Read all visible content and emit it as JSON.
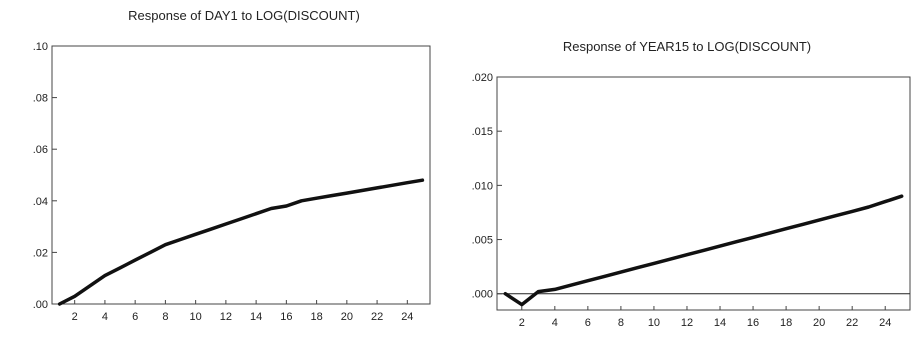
{
  "chart_data": [
    {
      "type": "line",
      "title": "Response of DAY1 to LOG(DISCOUNT)",
      "xlabel": "",
      "ylabel": "",
      "xlim": [
        0.5,
        25.5
      ],
      "ylim": [
        0.0,
        0.1
      ],
      "x_ticks": [
        2,
        4,
        6,
        8,
        10,
        12,
        14,
        16,
        18,
        20,
        22,
        24
      ],
      "x_tick_labels": [
        "2",
        "4",
        "6",
        "8",
        "10",
        "12",
        "14",
        "16",
        "18",
        "20",
        "22",
        "24"
      ],
      "y_ticks": [
        0.0,
        0.02,
        0.04,
        0.06,
        0.08,
        0.1
      ],
      "y_tick_labels": [
        ".00",
        ".02",
        ".04",
        ".06",
        ".08",
        ".10"
      ],
      "grid": false,
      "zero_line": false,
      "series": [
        {
          "x": [
            1,
            2,
            3,
            4,
            5,
            6,
            7,
            8,
            9,
            10,
            11,
            12,
            13,
            14,
            15,
            16,
            17,
            18,
            19,
            20,
            21,
            22,
            23,
            24,
            25
          ],
          "values": [
            0.0,
            0.003,
            0.007,
            0.011,
            0.014,
            0.017,
            0.02,
            0.023,
            0.025,
            0.027,
            0.029,
            0.031,
            0.033,
            0.035,
            0.037,
            0.038,
            0.04,
            0.041,
            0.042,
            0.043,
            0.044,
            0.045,
            0.046,
            0.047,
            0.048
          ]
        }
      ]
    },
    {
      "type": "line",
      "title": "Response of YEAR15 to LOG(DISCOUNT)",
      "xlabel": "",
      "ylabel": "",
      "xlim": [
        0.5,
        25.5
      ],
      "ylim": [
        -0.0015,
        0.02
      ],
      "x_ticks": [
        2,
        4,
        6,
        8,
        10,
        12,
        14,
        16,
        18,
        20,
        22,
        24
      ],
      "x_tick_labels": [
        "2",
        "4",
        "6",
        "8",
        "10",
        "12",
        "14",
        "16",
        "18",
        "20",
        "22",
        "24"
      ],
      "y_ticks": [
        0.0,
        0.005,
        0.01,
        0.015,
        0.02
      ],
      "y_tick_labels": [
        ".000",
        ".005",
        ".010",
        ".015",
        ".020"
      ],
      "grid": false,
      "zero_line": true,
      "series": [
        {
          "x": [
            1,
            2,
            3,
            4,
            5,
            6,
            7,
            8,
            9,
            10,
            11,
            12,
            13,
            14,
            15,
            16,
            17,
            18,
            19,
            20,
            21,
            22,
            23,
            24,
            25
          ],
          "values": [
            0.0,
            -0.001,
            0.0002,
            0.0004,
            0.0008,
            0.0012,
            0.0016,
            0.002,
            0.0024,
            0.0028,
            0.0032,
            0.0036,
            0.004,
            0.0044,
            0.0048,
            0.0052,
            0.0056,
            0.006,
            0.0064,
            0.0068,
            0.0072,
            0.0076,
            0.008,
            0.0085,
            0.009
          ]
        }
      ]
    }
  ]
}
